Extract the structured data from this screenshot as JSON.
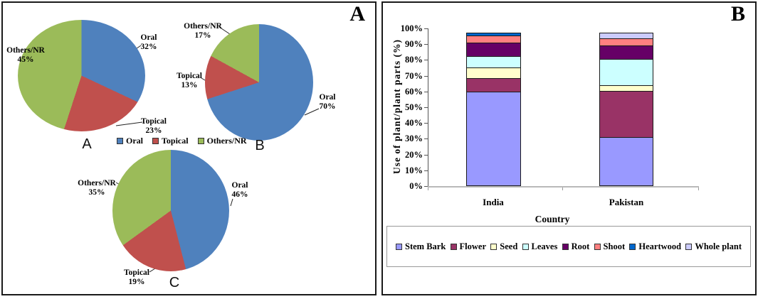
{
  "panel_a": {
    "corner_label": "A",
    "pie_legend": [
      {
        "label": "Oral",
        "color": "#4F81BD"
      },
      {
        "label": "Topical",
        "color": "#C0504D"
      },
      {
        "label": "Others/NR",
        "color": "#9BBB59"
      }
    ]
  },
  "panel_b": {
    "corner_label": "B"
  },
  "chart_data": [
    {
      "type": "pie",
      "title": "A",
      "slices": [
        {
          "label": "Oral",
          "value": 32,
          "pct_label": "32%",
          "color": "#4F81BD"
        },
        {
          "label": "Topical",
          "value": 23,
          "pct_label": "23%",
          "color": "#C0504D"
        },
        {
          "label": "Others/NR",
          "value": 45,
          "pct_label": "45%",
          "color": "#9BBB59"
        }
      ]
    },
    {
      "type": "pie",
      "title": "B",
      "slices": [
        {
          "label": "Oral",
          "value": 70,
          "pct_label": "70%",
          "color": "#4F81BD"
        },
        {
          "label": "Topical",
          "value": 13,
          "pct_label": "13%",
          "color": "#C0504D"
        },
        {
          "label": "Others/NR",
          "value": 17,
          "pct_label": "17%",
          "color": "#9BBB59"
        }
      ]
    },
    {
      "type": "pie",
      "title": "C",
      "slices": [
        {
          "label": "Oral",
          "value": 46,
          "pct_label": "46%",
          "color": "#4F81BD"
        },
        {
          "label": "Topical",
          "value": 19,
          "pct_label": "19%",
          "color": "#C0504D"
        },
        {
          "label": "Others/NR",
          "value": 35,
          "pct_label": "35%",
          "color": "#9BBB59"
        }
      ]
    },
    {
      "type": "bar",
      "stacked": true,
      "categories": [
        "India",
        "Pakistan"
      ],
      "series": [
        {
          "name": "Stem Bark",
          "color": "#9999FF",
          "values": [
            60,
            31
          ]
        },
        {
          "name": "Flower",
          "color": "#993366",
          "values": [
            9,
            30
          ]
        },
        {
          "name": "Seed",
          "color": "#FFFFCC",
          "values": [
            7,
            4
          ]
        },
        {
          "name": "Leaves",
          "color": "#CCFFFF",
          "values": [
            8,
            17
          ]
        },
        {
          "name": "Root",
          "color": "#660066",
          "values": [
            9,
            9
          ]
        },
        {
          "name": "Shoot",
          "color": "#FF8080",
          "values": [
            5,
            5
          ]
        },
        {
          "name": "Heartwood",
          "color": "#0066CC",
          "values": [
            2,
            0
          ]
        },
        {
          "name": "Whole plant",
          "color": "#CCCCFF",
          "values": [
            0,
            4
          ]
        }
      ],
      "xlabel": "Country",
      "ylabel": "Use of plant/plant parts (%)",
      "yticks": [
        "0%",
        "10%",
        "20%",
        "30%",
        "40%",
        "50%",
        "60%",
        "70%",
        "80%",
        "90%",
        "100%"
      ],
      "ylim": [
        0,
        100
      ],
      "grid": false,
      "legend_position": "bottom"
    }
  ]
}
